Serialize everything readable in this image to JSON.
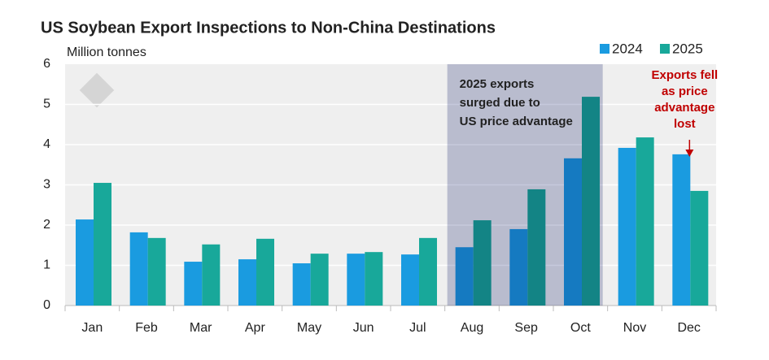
{
  "chart_data": {
    "type": "bar",
    "title": "US Soybean Export Inspections to Non-China Destinations",
    "y_label": "Million tonnes",
    "categories": [
      "Jan",
      "Feb",
      "Mar",
      "Apr",
      "May",
      "Jun",
      "Jul",
      "Aug",
      "Sep",
      "Oct",
      "Nov",
      "Dec"
    ],
    "series": [
      {
        "name": "2024",
        "color": "#1a9be0",
        "values": [
          2.14,
          1.82,
          1.09,
          1.15,
          1.05,
          1.29,
          1.27,
          1.45,
          1.9,
          3.66,
          3.92,
          3.76
        ]
      },
      {
        "name": "2025",
        "color": "#18a89a",
        "values": [
          3.05,
          1.68,
          1.52,
          1.66,
          1.29,
          1.33,
          1.68,
          2.12,
          2.89,
          5.19,
          4.18,
          2.85
        ]
      }
    ],
    "ylim": [
      0,
      6
    ],
    "yticks": [
      0,
      1,
      2,
      3,
      4,
      5,
      6
    ],
    "grid": true,
    "legend": "top-right",
    "annotations": [
      {
        "lines": [
          "2025 exports",
          "surged due to",
          "US price advantage"
        ],
        "span": [
          "Aug",
          "Oct"
        ],
        "color": "#c6c9dc"
      },
      {
        "lines": [
          "Exports fell",
          "as price",
          "advantage",
          "lost"
        ],
        "category": "Dec",
        "color": "#c00000"
      }
    ]
  }
}
